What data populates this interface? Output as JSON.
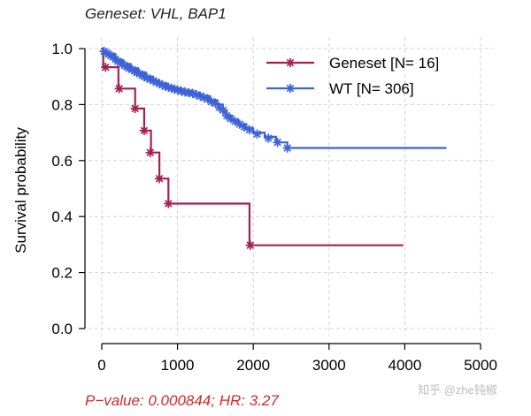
{
  "colors": {
    "geneset": "#A3214F",
    "wt": "#3C63D9",
    "pvalue": "#D12A2A",
    "grid": "#d4d4d4",
    "axis": "#000000"
  },
  "watermark": "知乎 @zhe钝椒",
  "chart_data": {
    "type": "line",
    "subtype": "kaplan-meier",
    "title": "Geneset: VHL, BAP1",
    "xlabel": "",
    "ylabel": "Survival probability",
    "xlim": [
      0,
      5000
    ],
    "ylim": [
      0,
      1.0
    ],
    "x_ticks": [
      0,
      1000,
      2000,
      3000,
      4000,
      5000
    ],
    "y_ticks": [
      0.0,
      0.2,
      0.4,
      0.6,
      0.8,
      1.0
    ],
    "x_tick_labels": [
      "0",
      "1000",
      "2000",
      "3000",
      "4000",
      "5000"
    ],
    "y_tick_labels": [
      "0.0",
      "0.2",
      "0.4",
      "0.6",
      "0.8",
      "1.0"
    ],
    "grid": true,
    "legend_position": "top-right",
    "footer": "P−value: 0.000844; HR: 3.27",
    "series": [
      {
        "name": "Geneset [N= 16]",
        "color": "#A3214F",
        "steps": [
          [
            0,
            1.0
          ],
          [
            20,
            0.9333
          ],
          [
            220,
            0.8571
          ],
          [
            440,
            0.7857
          ],
          [
            560,
            0.7071
          ],
          [
            650,
            0.6286
          ],
          [
            760,
            0.5357
          ],
          [
            880,
            0.4464
          ],
          [
            1950,
            0.2976
          ],
          [
            3980,
            0.2976
          ]
        ],
        "censor": [
          [
            50,
            0.9333
          ],
          [
            230,
            0.8571
          ],
          [
            440,
            0.7857
          ],
          [
            560,
            0.7071
          ],
          [
            640,
            0.6286
          ],
          [
            760,
            0.5357
          ],
          [
            880,
            0.4464
          ],
          [
            1960,
            0.2976
          ]
        ]
      },
      {
        "name": "WT [N= 306]",
        "color": "#3C63D9",
        "steps": [
          [
            0,
            1.0
          ],
          [
            20,
            0.99
          ],
          [
            80,
            0.98
          ],
          [
            180,
            0.96
          ],
          [
            280,
            0.945
          ],
          [
            380,
            0.93
          ],
          [
            480,
            0.915
          ],
          [
            580,
            0.9
          ],
          [
            680,
            0.885
          ],
          [
            760,
            0.875
          ],
          [
            860,
            0.865
          ],
          [
            960,
            0.855
          ],
          [
            1060,
            0.848
          ],
          [
            1200,
            0.84
          ],
          [
            1300,
            0.83
          ],
          [
            1420,
            0.815
          ],
          [
            1520,
            0.8
          ],
          [
            1600,
            0.78
          ],
          [
            1650,
            0.76
          ],
          [
            1720,
            0.745
          ],
          [
            1800,
            0.73
          ],
          [
            1900,
            0.715
          ],
          [
            2000,
            0.7
          ],
          [
            2150,
            0.685
          ],
          [
            2300,
            0.665
          ],
          [
            2450,
            0.645
          ],
          [
            4550,
            0.645
          ]
        ],
        "censor": [
          [
            30,
            0.99
          ],
          [
            60,
            0.985
          ],
          [
            90,
            0.98
          ],
          [
            120,
            0.975
          ],
          [
            150,
            0.97
          ],
          [
            180,
            0.962
          ],
          [
            210,
            0.955
          ],
          [
            240,
            0.95
          ],
          [
            270,
            0.945
          ],
          [
            300,
            0.94
          ],
          [
            330,
            0.935
          ],
          [
            360,
            0.93
          ],
          [
            400,
            0.925
          ],
          [
            430,
            0.92
          ],
          [
            460,
            0.915
          ],
          [
            500,
            0.91
          ],
          [
            530,
            0.905
          ],
          [
            560,
            0.9
          ],
          [
            600,
            0.895
          ],
          [
            640,
            0.89
          ],
          [
            680,
            0.885
          ],
          [
            720,
            0.88
          ],
          [
            760,
            0.875
          ],
          [
            800,
            0.87
          ],
          [
            840,
            0.865
          ],
          [
            880,
            0.862
          ],
          [
            920,
            0.858
          ],
          [
            960,
            0.855
          ],
          [
            1000,
            0.852
          ],
          [
            1050,
            0.848
          ],
          [
            1100,
            0.845
          ],
          [
            1150,
            0.842
          ],
          [
            1200,
            0.84
          ],
          [
            1250,
            0.835
          ],
          [
            1300,
            0.83
          ],
          [
            1350,
            0.825
          ],
          [
            1400,
            0.82
          ],
          [
            1450,
            0.81
          ],
          [
            1500,
            0.805
          ],
          [
            1550,
            0.79
          ],
          [
            1600,
            0.78
          ],
          [
            1650,
            0.76
          ],
          [
            1700,
            0.75
          ],
          [
            1760,
            0.74
          ],
          [
            1820,
            0.73
          ],
          [
            1880,
            0.72
          ],
          [
            1950,
            0.71
          ],
          [
            2050,
            0.695
          ],
          [
            2200,
            0.68
          ],
          [
            2320,
            0.665
          ],
          [
            2450,
            0.645
          ]
        ]
      }
    ]
  }
}
